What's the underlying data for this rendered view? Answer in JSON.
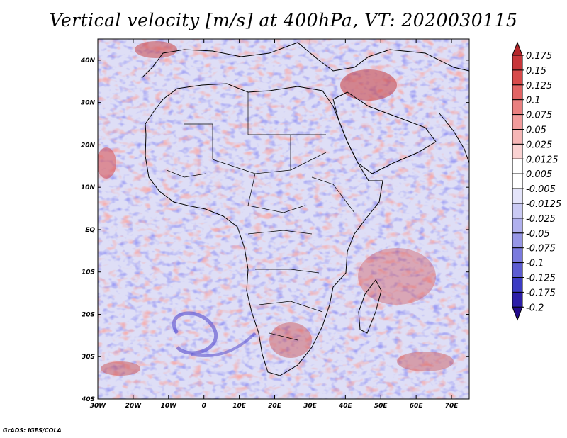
{
  "title": "Vertical velocity [m/s] at 400hPa, VT: 2020030115",
  "credit": "GrADS: IGES/COLA",
  "map": {
    "lat_ticks": [
      "40N",
      "30N",
      "20N",
      "10N",
      "EQ",
      "10S",
      "20S",
      "30S",
      "40S"
    ],
    "lon_ticks": [
      "30W",
      "20W",
      "10W",
      "0",
      "10E",
      "20E",
      "30E",
      "40E",
      "50E",
      "60E",
      "70E"
    ],
    "lat_values": [
      40,
      30,
      20,
      10,
      0,
      -10,
      -20,
      -30,
      -40
    ],
    "lon_values": [
      -30,
      -20,
      -10,
      0,
      10,
      20,
      30,
      40,
      50,
      60,
      70
    ],
    "extent": {
      "lon_min": -30,
      "lon_max": 75,
      "lat_min": -40,
      "lat_max": 45
    }
  },
  "colorbar": {
    "labels": [
      "0.175",
      "0.15",
      "0.125",
      "0.1",
      "0.075",
      "0.05",
      "0.025",
      "0.0125",
      "0.005",
      "-0.005",
      "-0.0125",
      "-0.025",
      "-0.05",
      "-0.075",
      "-0.1",
      "-0.125",
      "-0.175",
      "-0.2"
    ],
    "colors": [
      "#b4262a",
      "#c8363a",
      "#d84a4a",
      "#e26464",
      "#ea8080",
      "#f29c9c",
      "#f6b6b6",
      "#fad2d2",
      "#ffffff",
      "#ffffff",
      "#e4e4fa",
      "#cacaf4",
      "#b0b0ee",
      "#9696e6",
      "#7a7ade",
      "#5c5cd2",
      "#3c3cc4",
      "#2c1ea8",
      "#240c8c"
    ]
  },
  "colors": {
    "positive": "#d84a4a",
    "negative": "#5c5cd2",
    "coast": "#000000",
    "background_field": "#dcdcf6"
  }
}
